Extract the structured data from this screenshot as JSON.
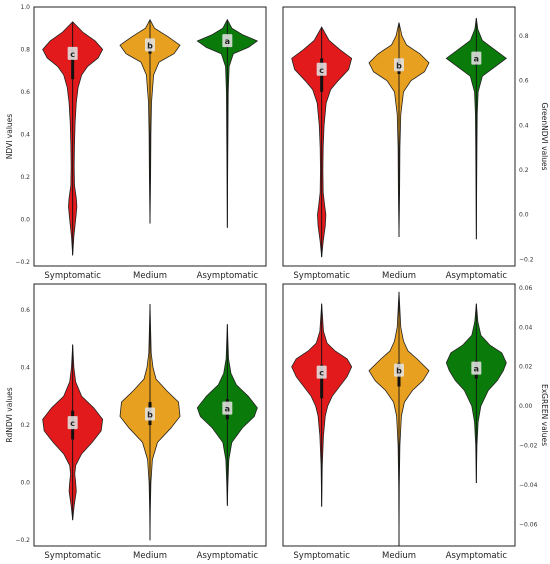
{
  "colors": {
    "Symptomatic": "#e31a1c",
    "Medium": "#e8a020",
    "Asymptomatic": "#0a7a0a"
  },
  "chart_data": [
    {
      "type": "violin",
      "ylabel": "NDVI values",
      "yaxis_side": "left",
      "ylim": [
        -0.22,
        1.0
      ],
      "yticks": [
        -0.2,
        0.0,
        0.2,
        0.4,
        0.6,
        0.8,
        1.0
      ],
      "categories": [
        "Symptomatic",
        "Medium",
        "Asymptomatic"
      ],
      "series": [
        {
          "name": "Symptomatic",
          "letter": "c",
          "min": -0.17,
          "q1": 0.66,
          "median": 0.77,
          "q3": 0.8,
          "max": 0.93,
          "profile": [
            [
              -0.17,
              0.0
            ],
            [
              -0.08,
              0.04
            ],
            [
              0.0,
              0.1
            ],
            [
              0.06,
              0.14
            ],
            [
              0.1,
              0.12
            ],
            [
              0.16,
              0.06
            ],
            [
              0.25,
              0.05
            ],
            [
              0.35,
              0.06
            ],
            [
              0.45,
              0.08
            ],
            [
              0.55,
              0.12
            ],
            [
              0.62,
              0.18
            ],
            [
              0.68,
              0.3
            ],
            [
              0.72,
              0.5
            ],
            [
              0.76,
              0.85
            ],
            [
              0.8,
              1.0
            ],
            [
              0.84,
              0.75
            ],
            [
              0.88,
              0.35
            ],
            [
              0.93,
              0.0
            ]
          ]
        },
        {
          "name": "Medium",
          "letter": "b",
          "min": -0.02,
          "q1": 0.78,
          "median": 0.81,
          "q3": 0.83,
          "max": 0.94,
          "profile": [
            [
              -0.02,
              0.0
            ],
            [
              0.2,
              0.02
            ],
            [
              0.4,
              0.03
            ],
            [
              0.55,
              0.05
            ],
            [
              0.68,
              0.12
            ],
            [
              0.74,
              0.3
            ],
            [
              0.78,
              0.8
            ],
            [
              0.82,
              1.0
            ],
            [
              0.86,
              0.6
            ],
            [
              0.9,
              0.15
            ],
            [
              0.94,
              0.0
            ]
          ]
        },
        {
          "name": "Asymptomatic",
          "letter": "a",
          "min": -0.04,
          "q1": 0.81,
          "median": 0.83,
          "q3": 0.85,
          "max": 0.94,
          "profile": [
            [
              -0.04,
              0.0
            ],
            [
              0.2,
              0.01
            ],
            [
              0.4,
              0.02
            ],
            [
              0.6,
              0.03
            ],
            [
              0.72,
              0.06
            ],
            [
              0.78,
              0.2
            ],
            [
              0.81,
              0.7
            ],
            [
              0.84,
              1.0
            ],
            [
              0.87,
              0.5
            ],
            [
              0.9,
              0.15
            ],
            [
              0.94,
              0.0
            ]
          ]
        }
      ]
    },
    {
      "type": "violin",
      "ylabel": "GreenNDVI values",
      "yaxis_side": "right",
      "ylim": [
        -0.23,
        0.93
      ],
      "yticks": [
        -0.2,
        0.0,
        0.2,
        0.4,
        0.6,
        0.8
      ],
      "categories": [
        "Symptomatic",
        "Medium",
        "Asymptomatic"
      ],
      "series": [
        {
          "name": "Symptomatic",
          "letter": "c",
          "min": -0.19,
          "q1": 0.55,
          "median": 0.64,
          "q3": 0.7,
          "max": 0.84,
          "profile": [
            [
              -0.19,
              0.0
            ],
            [
              -0.12,
              0.05
            ],
            [
              -0.05,
              0.12
            ],
            [
              0.0,
              0.14
            ],
            [
              0.04,
              0.1
            ],
            [
              0.1,
              0.05
            ],
            [
              0.2,
              0.04
            ],
            [
              0.3,
              0.05
            ],
            [
              0.4,
              0.08
            ],
            [
              0.5,
              0.15
            ],
            [
              0.56,
              0.3
            ],
            [
              0.6,
              0.55
            ],
            [
              0.65,
              0.9
            ],
            [
              0.7,
              1.0
            ],
            [
              0.74,
              0.6
            ],
            [
              0.78,
              0.25
            ],
            [
              0.84,
              0.0
            ]
          ]
        },
        {
          "name": "Medium",
          "letter": "b",
          "min": -0.1,
          "q1": 0.63,
          "median": 0.66,
          "q3": 0.7,
          "max": 0.86,
          "profile": [
            [
              -0.1,
              0.0
            ],
            [
              0.1,
              0.02
            ],
            [
              0.3,
              0.03
            ],
            [
              0.45,
              0.06
            ],
            [
              0.55,
              0.15
            ],
            [
              0.6,
              0.4
            ],
            [
              0.64,
              0.85
            ],
            [
              0.68,
              1.0
            ],
            [
              0.72,
              0.7
            ],
            [
              0.76,
              0.25
            ],
            [
              0.8,
              0.1
            ],
            [
              0.86,
              0.0
            ]
          ]
        },
        {
          "name": "Asymptomatic",
          "letter": "a",
          "min": -0.11,
          "q1": 0.67,
          "median": 0.69,
          "q3": 0.72,
          "max": 0.88,
          "profile": [
            [
              -0.11,
              0.0
            ],
            [
              0.1,
              0.01
            ],
            [
              0.3,
              0.02
            ],
            [
              0.45,
              0.03
            ],
            [
              0.55,
              0.06
            ],
            [
              0.62,
              0.2
            ],
            [
              0.66,
              0.6
            ],
            [
              0.7,
              1.0
            ],
            [
              0.74,
              0.6
            ],
            [
              0.78,
              0.2
            ],
            [
              0.83,
              0.05
            ],
            [
              0.88,
              0.0
            ]
          ]
        }
      ]
    },
    {
      "type": "violin",
      "ylabel": "RdNDVI values",
      "yaxis_side": "left",
      "ylim": [
        -0.22,
        0.69
      ],
      "yticks": [
        -0.2,
        0.0,
        0.2,
        0.4,
        0.6
      ],
      "categories": [
        "Symptomatic",
        "Medium",
        "Asymptomatic"
      ],
      "series": [
        {
          "name": "Symptomatic",
          "letter": "c",
          "min": -0.13,
          "q1": 0.15,
          "median": 0.2,
          "q3": 0.25,
          "max": 0.48,
          "profile": [
            [
              -0.13,
              0.0
            ],
            [
              -0.08,
              0.05
            ],
            [
              -0.03,
              0.12
            ],
            [
              0.0,
              0.1
            ],
            [
              0.03,
              0.07
            ],
            [
              0.06,
              0.1
            ],
            [
              0.1,
              0.3
            ],
            [
              0.14,
              0.65
            ],
            [
              0.18,
              0.95
            ],
            [
              0.22,
              1.0
            ],
            [
              0.26,
              0.7
            ],
            [
              0.3,
              0.3
            ],
            [
              0.35,
              0.1
            ],
            [
              0.4,
              0.04
            ],
            [
              0.48,
              0.0
            ]
          ]
        },
        {
          "name": "Medium",
          "letter": "b",
          "min": -0.2,
          "q1": 0.2,
          "median": 0.23,
          "q3": 0.28,
          "max": 0.62,
          "profile": [
            [
              -0.2,
              0.0
            ],
            [
              -0.1,
              0.01
            ],
            [
              0.0,
              0.03
            ],
            [
              0.08,
              0.08
            ],
            [
              0.14,
              0.25
            ],
            [
              0.19,
              0.7
            ],
            [
              0.23,
              1.0
            ],
            [
              0.28,
              0.95
            ],
            [
              0.32,
              0.55
            ],
            [
              0.36,
              0.2
            ],
            [
              0.4,
              0.1
            ],
            [
              0.45,
              0.04
            ],
            [
              0.62,
              0.0
            ]
          ]
        },
        {
          "name": "Asymptomatic",
          "letter": "a",
          "min": -0.08,
          "q1": 0.22,
          "median": 0.25,
          "q3": 0.29,
          "max": 0.55,
          "profile": [
            [
              -0.08,
              0.0
            ],
            [
              0.0,
              0.02
            ],
            [
              0.08,
              0.05
            ],
            [
              0.14,
              0.15
            ],
            [
              0.19,
              0.5
            ],
            [
              0.23,
              0.9
            ],
            [
              0.26,
              1.0
            ],
            [
              0.3,
              0.7
            ],
            [
              0.34,
              0.3
            ],
            [
              0.38,
              0.12
            ],
            [
              0.43,
              0.04
            ],
            [
              0.55,
              0.0
            ]
          ]
        }
      ]
    },
    {
      "type": "violin",
      "ylabel": "ExGREEN values",
      "yaxis_side": "right",
      "ylim": [
        -0.071,
        0.062
      ],
      "yticks": [
        -0.06,
        -0.04,
        -0.02,
        0.0,
        0.02,
        0.04,
        0.06
      ],
      "categories": [
        "Symptomatic",
        "Medium",
        "Asymptomatic"
      ],
      "series": [
        {
          "name": "Symptomatic",
          "letter": "c",
          "min": -0.051,
          "q1": 0.004,
          "median": 0.016,
          "q3": 0.021,
          "max": 0.052,
          "profile": [
            [
              -0.051,
              0.0
            ],
            [
              -0.03,
              0.02
            ],
            [
              -0.015,
              0.06
            ],
            [
              -0.005,
              0.12
            ],
            [
              0.0,
              0.2
            ],
            [
              0.005,
              0.35
            ],
            [
              0.01,
              0.6
            ],
            [
              0.015,
              0.85
            ],
            [
              0.02,
              1.0
            ],
            [
              0.024,
              0.85
            ],
            [
              0.028,
              0.45
            ],
            [
              0.032,
              0.18
            ],
            [
              0.038,
              0.06
            ],
            [
              0.052,
              0.0
            ]
          ]
        },
        {
          "name": "Medium",
          "letter": "b",
          "min": -0.071,
          "q1": 0.01,
          "median": 0.017,
          "q3": 0.022,
          "max": 0.058,
          "profile": [
            [
              -0.071,
              0.0
            ],
            [
              -0.04,
              0.01
            ],
            [
              -0.02,
              0.03
            ],
            [
              -0.005,
              0.08
            ],
            [
              0.002,
              0.18
            ],
            [
              0.008,
              0.45
            ],
            [
              0.013,
              0.8
            ],
            [
              0.018,
              1.0
            ],
            [
              0.024,
              0.6
            ],
            [
              0.028,
              0.3
            ],
            [
              0.033,
              0.15
            ],
            [
              0.04,
              0.06
            ],
            [
              0.058,
              0.0
            ]
          ]
        },
        {
          "name": "Asymptomatic",
          "letter": "a",
          "min": -0.039,
          "q1": 0.014,
          "median": 0.018,
          "q3": 0.023,
          "max": 0.052,
          "profile": [
            [
              -0.039,
              0.0
            ],
            [
              -0.02,
              0.02
            ],
            [
              -0.008,
              0.06
            ],
            [
              0.0,
              0.15
            ],
            [
              0.008,
              0.4
            ],
            [
              0.013,
              0.7
            ],
            [
              0.018,
              0.9
            ],
            [
              0.022,
              1.0
            ],
            [
              0.027,
              0.85
            ],
            [
              0.031,
              0.45
            ],
            [
              0.036,
              0.15
            ],
            [
              0.043,
              0.05
            ],
            [
              0.052,
              0.0
            ]
          ]
        }
      ]
    }
  ]
}
